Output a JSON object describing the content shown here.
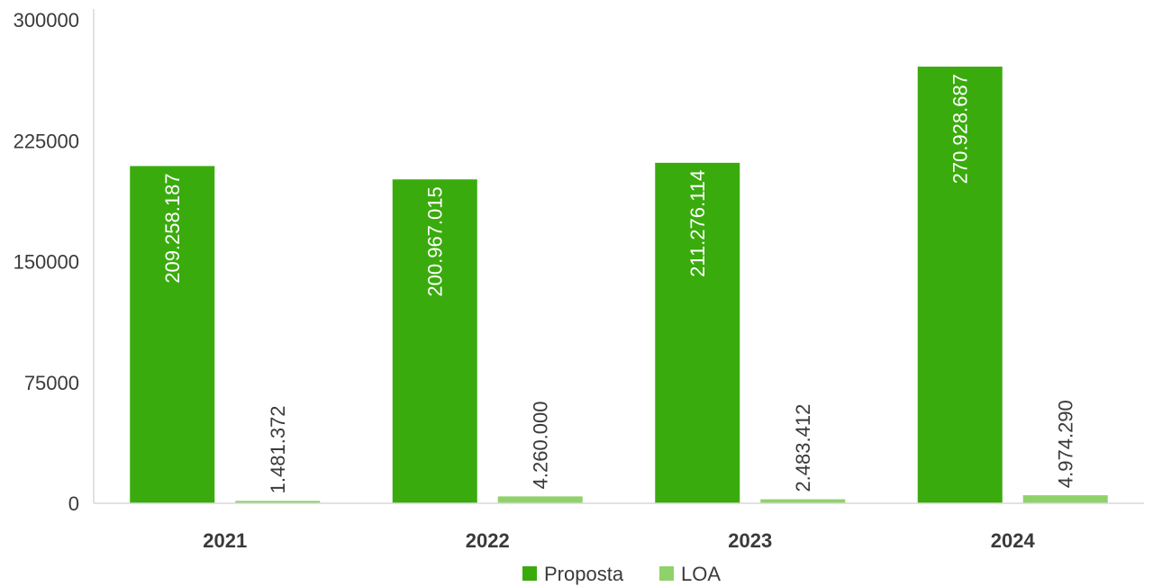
{
  "chart_data": {
    "type": "bar",
    "title": "",
    "xlabel": "",
    "ylabel": "",
    "categories": [
      "2021",
      "2022",
      "2023",
      "2024"
    ],
    "ylim": [
      0,
      300000
    ],
    "yticks": [
      "0",
      "75000",
      "150000",
      "225000",
      "300000"
    ],
    "grid": false,
    "legend_position": "bottom",
    "series": [
      {
        "name": "Proposta",
        "color": "#3aab0d",
        "values": [
          209258.187,
          200967.015,
          211276.114,
          270928.687
        ],
        "labels": [
          "209.258.187",
          "200.967.015",
          "211.276.114",
          "270.928.687"
        ]
      },
      {
        "name": "LOA",
        "color": "#8fd26a",
        "values": [
          1481.372,
          4260.0,
          2483.412,
          4974.29
        ],
        "labels": [
          "1.481.372",
          "4.260.000",
          "2.483.412",
          "4.974.290"
        ]
      }
    ]
  }
}
